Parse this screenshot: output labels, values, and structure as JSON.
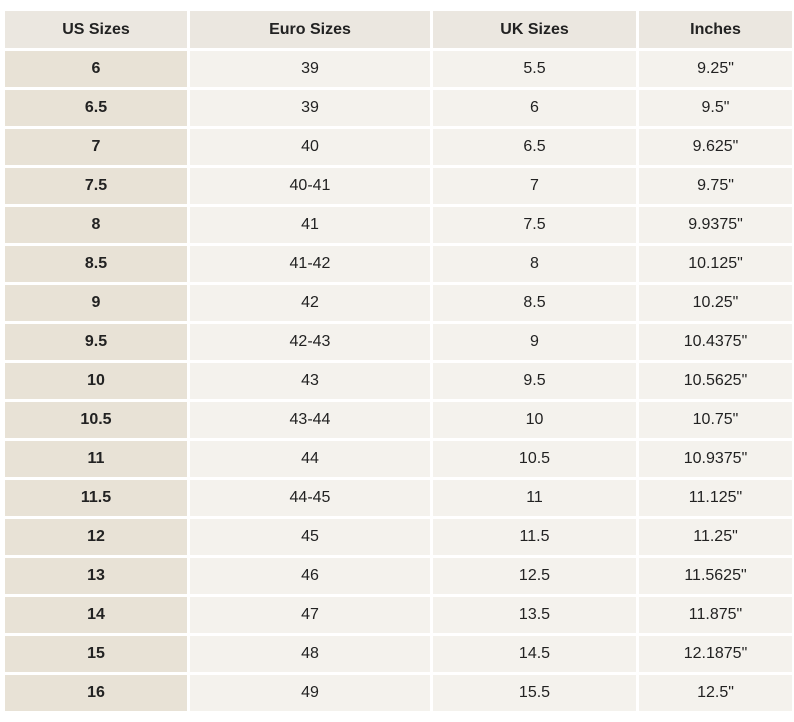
{
  "table": {
    "header": [
      "US Sizes",
      "Euro Sizes",
      "UK Sizes",
      "Inches"
    ],
    "rows": [
      [
        "6",
        "39",
        "5.5",
        "9.25\""
      ],
      [
        "6.5",
        "39",
        "6",
        "9.5\""
      ],
      [
        "7",
        "40",
        "6.5",
        "9.625\""
      ],
      [
        "7.5",
        "40-41",
        "7",
        "9.75\""
      ],
      [
        "8",
        "41",
        "7.5",
        "9.9375\""
      ],
      [
        "8.5",
        "41-42",
        "8",
        "10.125\""
      ],
      [
        "9",
        "42",
        "8.5",
        "10.25\""
      ],
      [
        "9.5",
        "42-43",
        "9",
        "10.4375\""
      ],
      [
        "10",
        "43",
        "9.5",
        "10.5625\""
      ],
      [
        "10.5",
        "43-44",
        "10",
        "10.75\""
      ],
      [
        "11",
        "44",
        "10.5",
        "10.9375\""
      ],
      [
        "11.5",
        "44-45",
        "11",
        "11.125\""
      ],
      [
        "12",
        "45",
        "11.5",
        "11.25\""
      ],
      [
        "13",
        "46",
        "12.5",
        "11.5625\""
      ],
      [
        "14",
        "47",
        "13.5",
        "11.875\""
      ],
      [
        "15",
        "48",
        "14.5",
        "12.1875\""
      ],
      [
        "16",
        "49",
        "15.5",
        "12.5\""
      ]
    ]
  }
}
